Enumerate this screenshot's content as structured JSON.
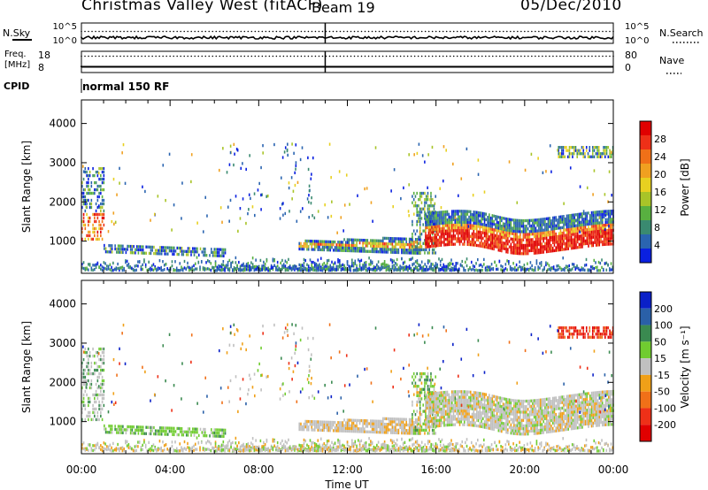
{
  "header": {
    "title": "Christmas Valley West (fitACF)",
    "beam": "Beam 19",
    "date": "05/Dec/2010"
  },
  "top_panels": {
    "nsky_label": "N.Sky",
    "nsky_ticks": [
      "10^5",
      "10^0"
    ],
    "nsearch_label": "N.Search",
    "nsearch_ticks": [
      "10^5",
      "10^0"
    ],
    "freq_label": "Freq.",
    "freq_unit": "[MHz]",
    "freq_ticks": [
      "18",
      "8"
    ],
    "nave_label": "Nave",
    "nave_ticks": [
      "80",
      "0"
    ],
    "cpid_label": "CPID",
    "cpid_text": "normal 150 RF"
  },
  "chart_data": [
    {
      "type": "heatmap",
      "panel": "power",
      "ylabel": "Slant Range [km]",
      "yticks": [
        1000,
        2000,
        3000,
        4000
      ],
      "ylim": [
        180,
        4600
      ],
      "xticks": [
        "00:00",
        "04:00",
        "08:00",
        "12:00",
        "16:00",
        "20:00",
        "00:00"
      ],
      "xlim_hours": [
        0,
        24
      ],
      "colorbar_label": "Power [dB]",
      "colorbar_ticks": [
        "4",
        "8",
        "12",
        "16",
        "20",
        "24",
        "28"
      ],
      "colorbar_colors": [
        "#0a20e0",
        "#2a64b0",
        "#3a8a70",
        "#58b040",
        "#a8c428",
        "#e8d020",
        "#f0a020",
        "#f07018",
        "#ee3018",
        "#e00000"
      ]
    },
    {
      "type": "heatmap",
      "panel": "velocity",
      "ylabel": "Slant Range [km]",
      "yticks": [
        1000,
        2000,
        3000,
        4000
      ],
      "ylim": [
        180,
        4600
      ],
      "xticks": [
        "00:00",
        "04:00",
        "08:00",
        "12:00",
        "16:00",
        "20:00",
        "00:00"
      ],
      "xlim_hours": [
        0,
        24
      ],
      "xlabel": "Time UT",
      "colorbar_label": "Velocity [m s⁻¹]",
      "colorbar_ticks": [
        "200",
        "100",
        "50",
        "15",
        "-15",
        "-50",
        "-100",
        "-200"
      ],
      "colorbar_colors": [
        "#0a20c8",
        "#2a60a8",
        "#3a8a50",
        "#70cc30",
        "#c0c0c0",
        "#f0a018",
        "#f07018",
        "#ee3018",
        "#e00000"
      ]
    }
  ]
}
